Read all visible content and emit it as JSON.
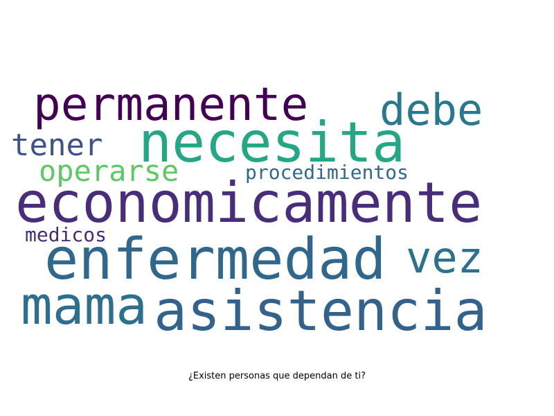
{
  "caption": "¿Existen personas que dependan de ti?",
  "words": [
    {
      "text": "permanente",
      "color": "#440154"
    },
    {
      "text": "debe",
      "color": "#2a788e"
    },
    {
      "text": "tener",
      "color": "#3b528b"
    },
    {
      "text": "necesita",
      "color": "#22a884"
    },
    {
      "text": "operarse",
      "color": "#5ec962"
    },
    {
      "text": "procedimientos",
      "color": "#31688e"
    },
    {
      "text": "economicamente",
      "color": "#472d7b"
    },
    {
      "text": "medicos",
      "color": "#472c7a"
    },
    {
      "text": "enfermedad",
      "color": "#30678d"
    },
    {
      "text": "vez",
      "color": "#2c728e"
    },
    {
      "text": "mama",
      "color": "#2d6f8e"
    },
    {
      "text": "asistencia",
      "color": "#33638d"
    }
  ]
}
